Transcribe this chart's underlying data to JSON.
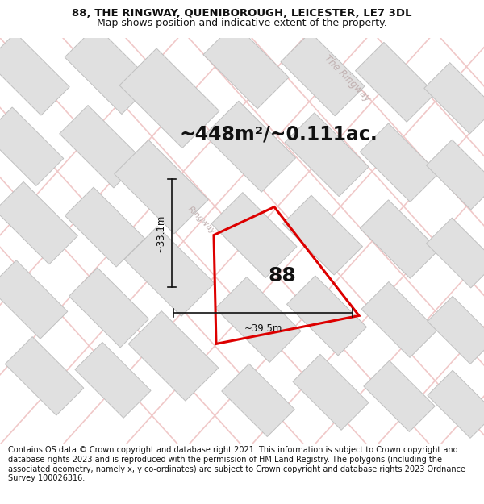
{
  "title_line1": "88, THE RINGWAY, QUENIBOROUGH, LEICESTER, LE7 3DL",
  "title_line2": "Map shows position and indicative extent of the property.",
  "area_text": "~448m²/~0.111ac.",
  "label_88": "88",
  "dim_vertical": "~33.1m",
  "dim_horizontal": "~39.5m",
  "road_label": "The Ringway",
  "road_label2": "Ringway",
  "footer": "Contains OS data © Crown copyright and database right 2021. This information is subject to Crown copyright and database rights 2023 and is reproduced with the permission of HM Land Registry. The polygons (including the associated geometry, namely x, y co-ordinates) are subject to Crown copyright and database rights 2023 Ordnance Survey 100026316.",
  "bg_color": "#f9f9f9",
  "road_line_color": "#f0c8c8",
  "road_line_lw": 1.2,
  "building_color": "#e0e0e0",
  "building_edge_color": "#c0c0c0",
  "building_edge_lw": 0.7,
  "property_color": "#dd0000",
  "property_lw": 2.2,
  "text_color": "#111111",
  "dim_color": "#111111",
  "road_text_color": "#c0b0b0",
  "title_fontsize": 9.5,
  "footer_fontsize": 7.0,
  "area_fontsize": 17,
  "label_fontsize": 18,
  "dim_fontsize": 8.5,
  "road_label_fontsize": 8.5
}
